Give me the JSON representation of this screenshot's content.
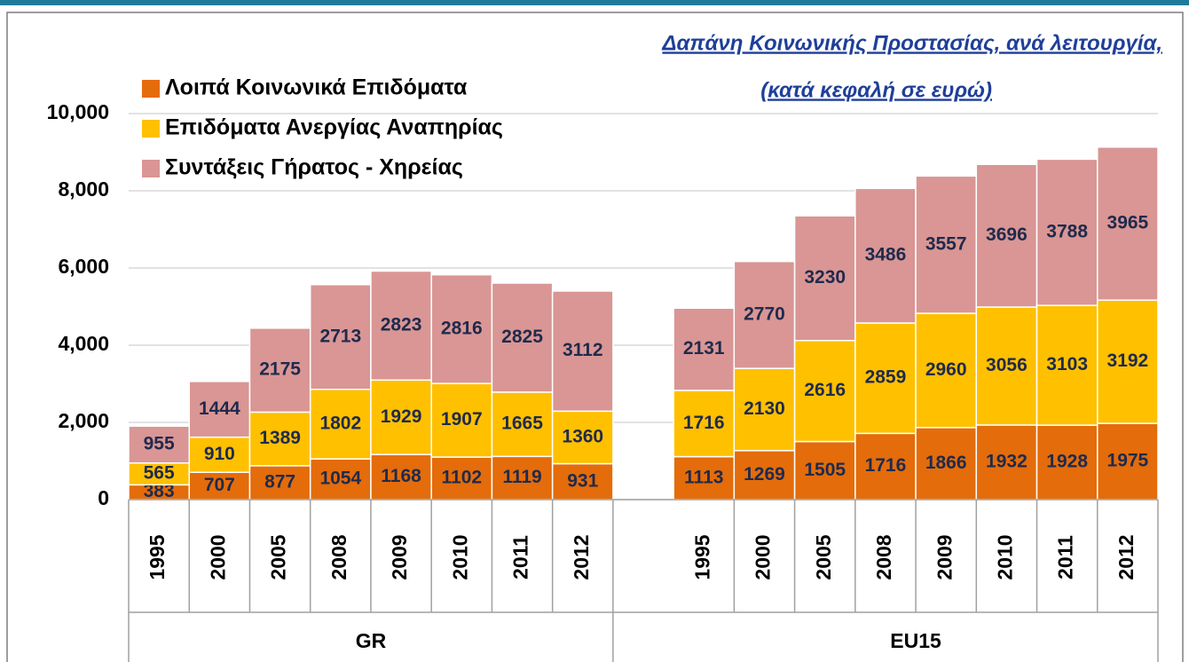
{
  "chart_data": {
    "type": "stacked_bar",
    "title": "Δαπάνη Κοινωνικής Προστασίας, ανά λειτουργία,",
    "subtitle": "(κατά κεφαλή σε ευρώ)",
    "categories": [
      "1995",
      "2000",
      "2005",
      "2008",
      "2009",
      "2010",
      "2011",
      "2012",
      null,
      "1995",
      "2000",
      "2005",
      "2008",
      "2009",
      "2010",
      "2011",
      "2012"
    ],
    "group_labels": [
      "GR",
      "EU15"
    ],
    "series": [
      {
        "name": "Λοιπά Κοινωνικά Επιδόματα",
        "color": "#e46c0a",
        "values": [
          383,
          707,
          877,
          1054,
          1168,
          1102,
          1119,
          931,
          null,
          1113,
          1269,
          1505,
          1716,
          1866,
          1932,
          1928,
          1975
        ]
      },
      {
        "name": "Επιδόματα Ανεργίας Αναπηρίας",
        "color": "#ffc000",
        "values": [
          565,
          910,
          1389,
          1802,
          1929,
          1907,
          1665,
          1360,
          null,
          1716,
          2130,
          2616,
          2859,
          2960,
          3056,
          3103,
          3192
        ]
      },
      {
        "name": "Συντάξεις Γήρατος - Χηρείας",
        "color": "#d99694",
        "values": [
          955,
          1444,
          2175,
          2713,
          2823,
          2816,
          2825,
          3112,
          null,
          2131,
          2770,
          3230,
          3486,
          3557,
          3696,
          3788,
          3965
        ]
      }
    ],
    "ylim": [
      0,
      10000
    ],
    "yticks": [
      0,
      {
        "value": 2000,
        "label": "2,000"
      },
      {
        "value": 4000,
        "label": "4,000"
      },
      {
        "value": 6000,
        "label": "6,000"
      },
      {
        "value": 8000,
        "label": "8,000"
      },
      {
        "value": 10000,
        "label": "10,000"
      }
    ],
    "grid": true,
    "legend": "top-left"
  }
}
